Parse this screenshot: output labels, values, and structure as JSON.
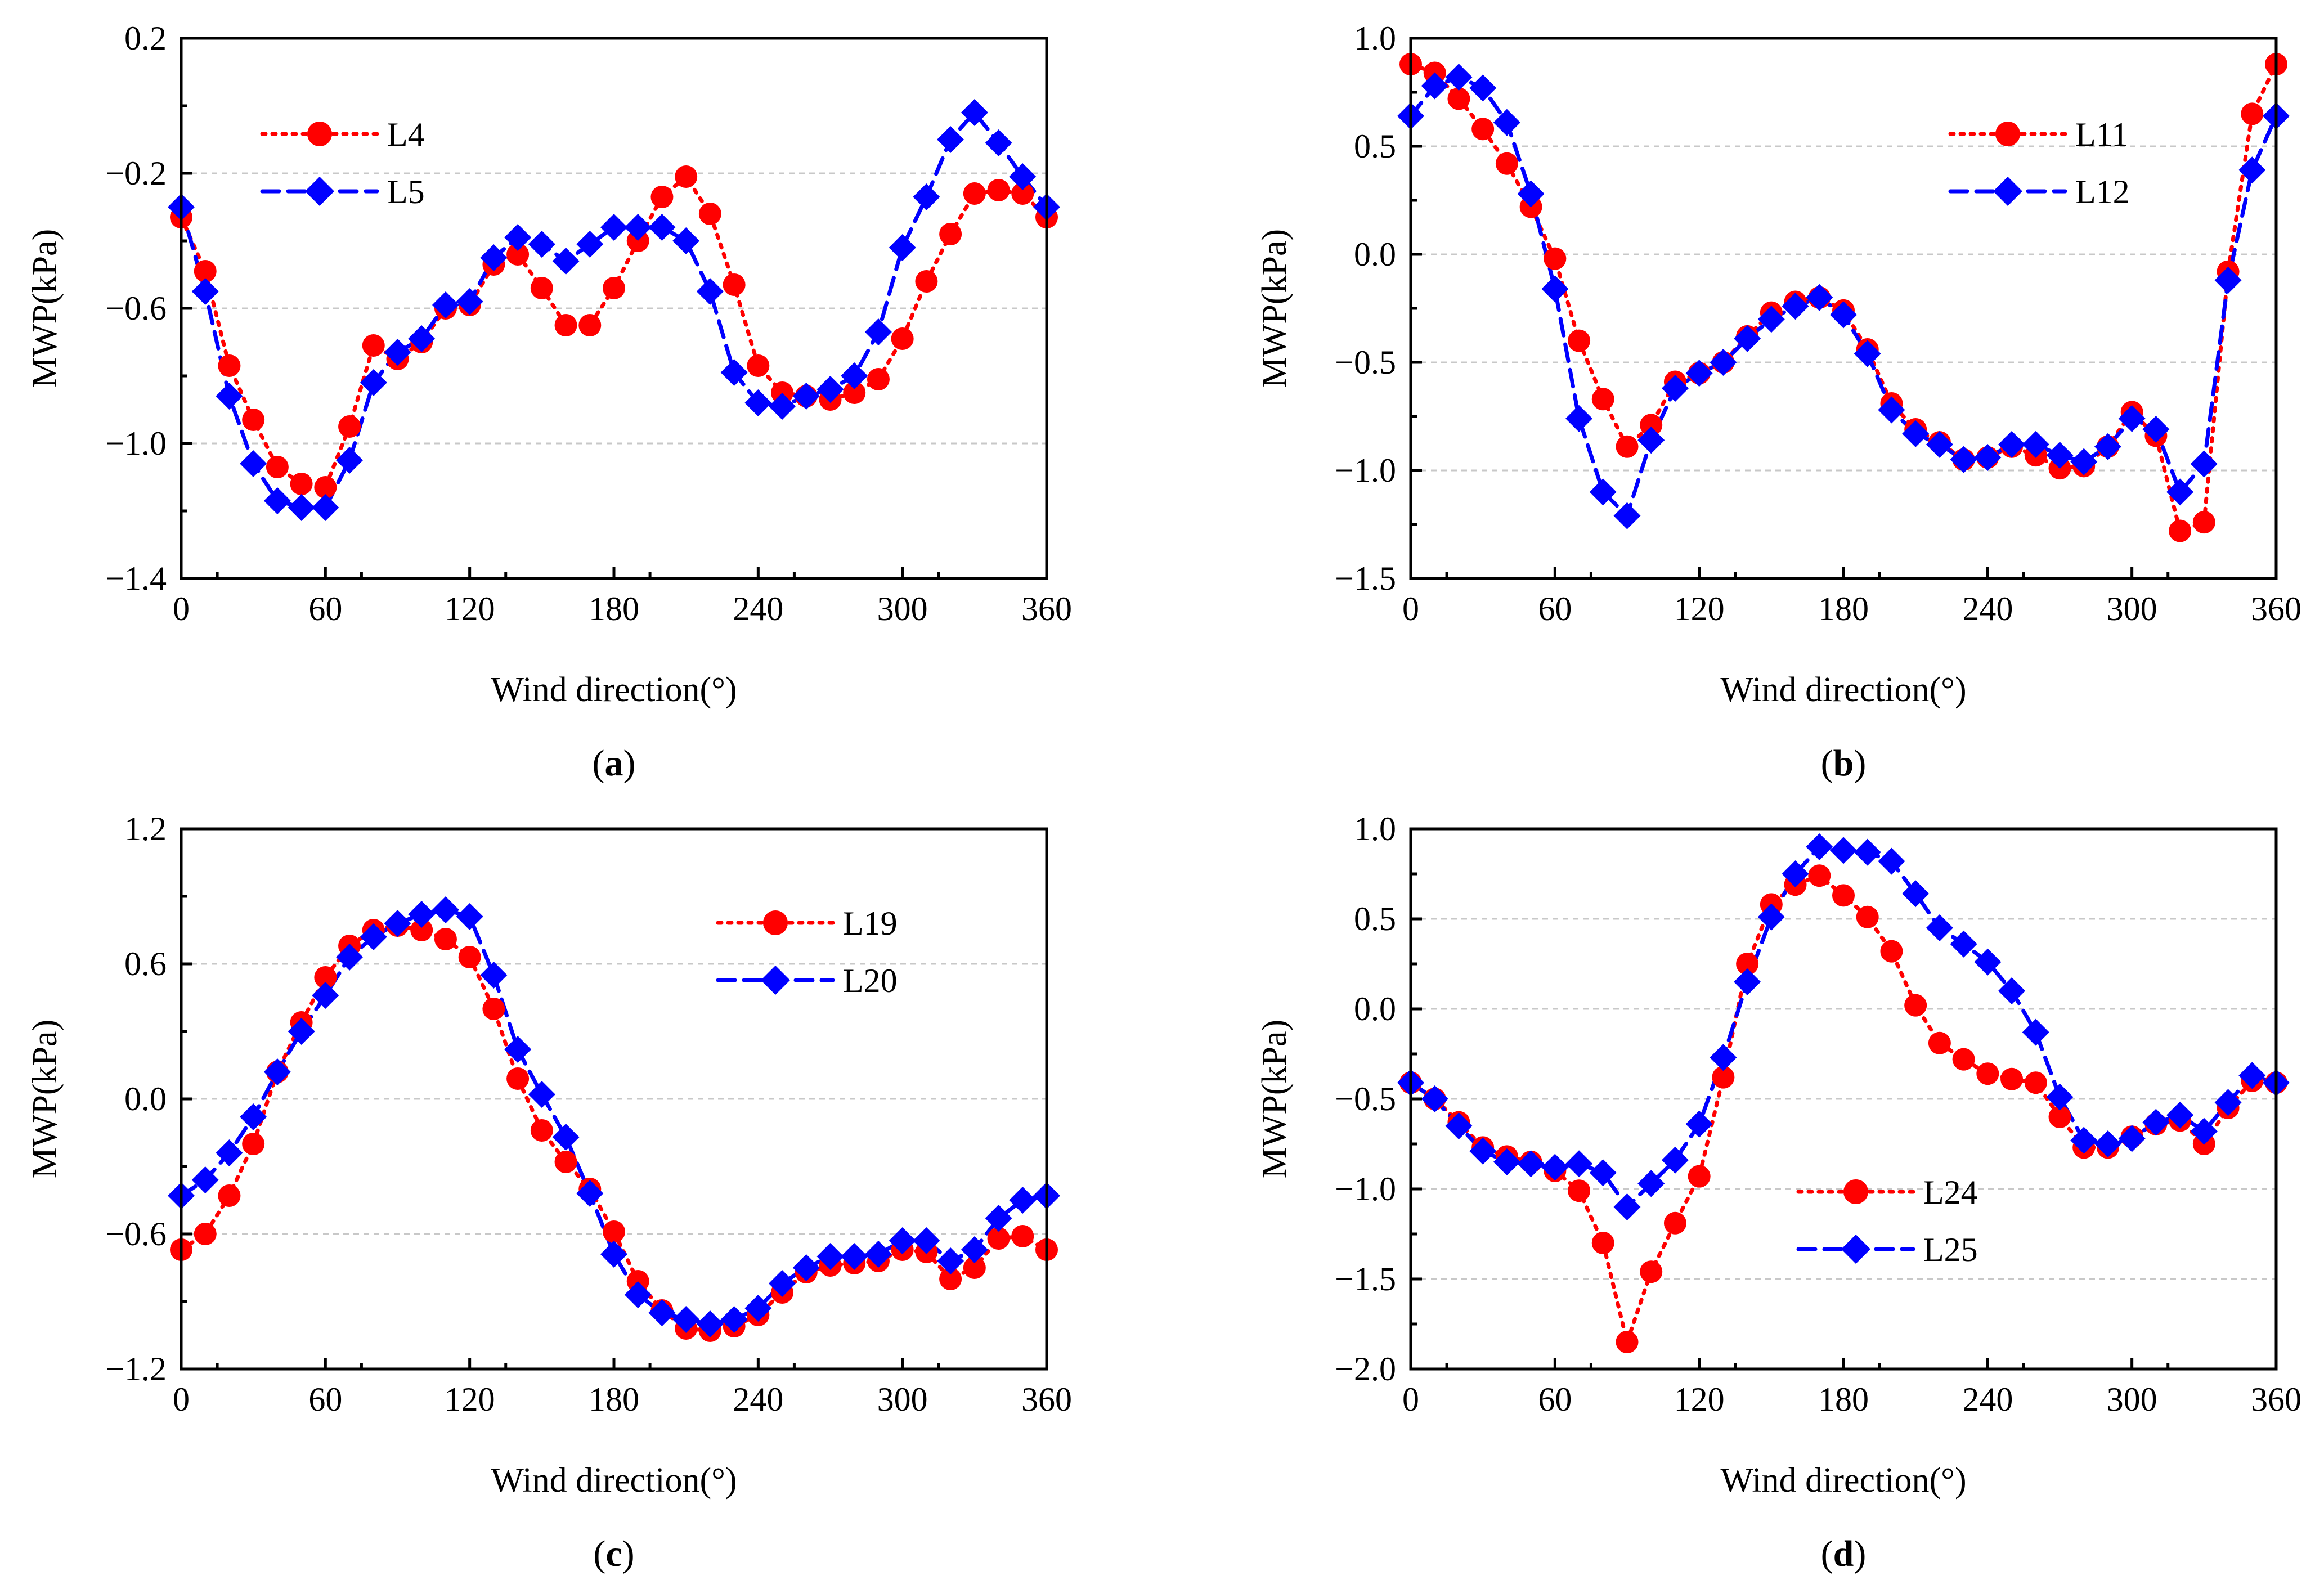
{
  "figure": {
    "x_ticks": [
      0,
      60,
      120,
      180,
      240,
      300,
      360
    ],
    "colors": {
      "series1": "#ff0000",
      "series2": "#0000ff",
      "grid": "#c8c8c8",
      "axis": "#000000"
    }
  },
  "chart_data": [
    {
      "type": "line",
      "panel_label_open": "(",
      "panel_label_letter": "a",
      "panel_label_close": ")",
      "xlabel": "Wind direction(°)",
      "ylabel": "MWP(kPa)",
      "xlim": [
        0,
        360
      ],
      "ylim": [
        -1.4,
        0.2
      ],
      "y_ticks": [
        0.2,
        -0.2,
        -0.6,
        -1.0,
        -1.4
      ],
      "y_tick_labels": [
        "0.2",
        "−0.2",
        "−0.6",
        "−1.0",
        "−1.4"
      ],
      "legend_position": "top-left",
      "x": [
        0,
        10,
        20,
        30,
        40,
        50,
        60,
        70,
        80,
        90,
        100,
        110,
        120,
        130,
        140,
        150,
        160,
        170,
        180,
        190,
        200,
        210,
        220,
        230,
        240,
        250,
        260,
        270,
        280,
        290,
        300,
        310,
        320,
        330,
        340,
        350,
        360
      ],
      "series": [
        {
          "name": "L4",
          "marker": "circle",
          "line": "dotted",
          "color": "#ff0000",
          "values": [
            -0.33,
            -0.49,
            -0.77,
            -0.93,
            -1.07,
            -1.12,
            -1.13,
            -0.95,
            -0.71,
            -0.75,
            -0.7,
            -0.6,
            -0.59,
            -0.47,
            -0.44,
            -0.54,
            -0.65,
            -0.65,
            -0.54,
            -0.4,
            -0.27,
            -0.21,
            -0.32,
            -0.53,
            -0.77,
            -0.85,
            -0.86,
            -0.87,
            -0.85,
            -0.81,
            -0.69,
            -0.52,
            -0.38,
            -0.26,
            -0.25,
            -0.26,
            -0.33
          ]
        },
        {
          "name": "L5",
          "marker": "diamond",
          "line": "dashed",
          "color": "#0000ff",
          "values": [
            -0.3,
            -0.55,
            -0.86,
            -1.06,
            -1.17,
            -1.19,
            -1.19,
            -1.05,
            -0.82,
            -0.73,
            -0.69,
            -0.59,
            -0.58,
            -0.45,
            -0.39,
            -0.41,
            -0.46,
            -0.41,
            -0.36,
            -0.36,
            -0.36,
            -0.4,
            -0.55,
            -0.79,
            -0.88,
            -0.89,
            -0.86,
            -0.84,
            -0.8,
            -0.67,
            -0.42,
            -0.27,
            -0.1,
            -0.02,
            -0.11,
            -0.21,
            -0.3
          ]
        }
      ]
    },
    {
      "type": "line",
      "panel_label_open": "(",
      "panel_label_letter": "b",
      "panel_label_close": ")",
      "xlabel": "Wind direction(°)",
      "ylabel": "MWP(kPa)",
      "xlim": [
        0,
        360
      ],
      "ylim": [
        -1.5,
        1.0
      ],
      "y_ticks": [
        1.0,
        0.5,
        0.0,
        -0.5,
        -1.0,
        -1.5
      ],
      "y_tick_labels": [
        "1.0",
        "0.5",
        "0.0",
        "−0.5",
        "−1.0",
        "−1.5"
      ],
      "legend_position": "top-right",
      "x": [
        0,
        10,
        20,
        30,
        40,
        50,
        60,
        70,
        80,
        90,
        100,
        110,
        120,
        130,
        140,
        150,
        160,
        170,
        180,
        190,
        200,
        210,
        220,
        230,
        240,
        250,
        260,
        270,
        280,
        290,
        300,
        310,
        320,
        330,
        340,
        350,
        360
      ],
      "series": [
        {
          "name": "L11",
          "marker": "circle",
          "line": "dotted",
          "color": "#ff0000",
          "values": [
            0.88,
            0.84,
            0.72,
            0.58,
            0.42,
            0.22,
            -0.02,
            -0.4,
            -0.67,
            -0.89,
            -0.79,
            -0.59,
            -0.55,
            -0.5,
            -0.38,
            -0.27,
            -0.22,
            -0.2,
            -0.26,
            -0.44,
            -0.69,
            -0.81,
            -0.87,
            -0.95,
            -0.94,
            -0.89,
            -0.93,
            -0.99,
            -0.98,
            -0.89,
            -0.73,
            -0.84,
            -1.28,
            -1.24,
            -0.08,
            0.65,
            0.88
          ]
        },
        {
          "name": "L12",
          "marker": "diamond",
          "line": "dashed",
          "color": "#0000ff",
          "values": [
            0.64,
            0.78,
            0.82,
            0.77,
            0.61,
            0.28,
            -0.16,
            -0.76,
            -1.1,
            -1.21,
            -0.86,
            -0.62,
            -0.55,
            -0.5,
            -0.39,
            -0.3,
            -0.24,
            -0.2,
            -0.28,
            -0.46,
            -0.72,
            -0.83,
            -0.88,
            -0.95,
            -0.94,
            -0.88,
            -0.88,
            -0.93,
            -0.96,
            -0.89,
            -0.76,
            -0.81,
            -1.1,
            -0.97,
            -0.12,
            0.39,
            0.64
          ]
        }
      ]
    },
    {
      "type": "line",
      "panel_label_open": "(",
      "panel_label_letter": "c",
      "panel_label_close": ")",
      "xlabel": "Wind direction(°)",
      "ylabel": "MWP(kPa)",
      "xlim": [
        0,
        360
      ],
      "ylim": [
        -1.2,
        1.2
      ],
      "y_ticks": [
        1.2,
        0.6,
        0.0,
        -0.6,
        -1.2
      ],
      "y_tick_labels": [
        "1.2",
        "0.6",
        "0.0",
        "−0.6",
        "−1.2"
      ],
      "legend_position": "top-right",
      "x": [
        0,
        10,
        20,
        30,
        40,
        50,
        60,
        70,
        80,
        90,
        100,
        110,
        120,
        130,
        140,
        150,
        160,
        170,
        180,
        190,
        200,
        210,
        220,
        230,
        240,
        250,
        260,
        270,
        280,
        290,
        300,
        310,
        320,
        330,
        340,
        350,
        360
      ],
      "series": [
        {
          "name": "L19",
          "marker": "circle",
          "line": "dotted",
          "color": "#ff0000",
          "values": [
            -0.67,
            -0.6,
            -0.43,
            -0.2,
            0.12,
            0.34,
            0.54,
            0.68,
            0.75,
            0.77,
            0.75,
            0.71,
            0.63,
            0.4,
            0.09,
            -0.14,
            -0.28,
            -0.4,
            -0.59,
            -0.81,
            -0.94,
            -1.02,
            -1.03,
            -1.01,
            -0.96,
            -0.86,
            -0.77,
            -0.74,
            -0.73,
            -0.72,
            -0.67,
            -0.68,
            -0.8,
            -0.75,
            -0.62,
            -0.61,
            -0.67
          ]
        },
        {
          "name": "L20",
          "marker": "diamond",
          "line": "dashed",
          "color": "#0000ff",
          "values": [
            -0.43,
            -0.36,
            -0.24,
            -0.08,
            0.12,
            0.3,
            0.46,
            0.63,
            0.72,
            0.78,
            0.82,
            0.84,
            0.81,
            0.55,
            0.22,
            0.02,
            -0.17,
            -0.42,
            -0.69,
            -0.87,
            -0.95,
            -0.98,
            -1.0,
            -0.98,
            -0.93,
            -0.82,
            -0.75,
            -0.7,
            -0.7,
            -0.69,
            -0.63,
            -0.63,
            -0.72,
            -0.67,
            -0.53,
            -0.45,
            -0.43
          ]
        }
      ]
    },
    {
      "type": "line",
      "panel_label_open": "(",
      "panel_label_letter": "d",
      "panel_label_close": ")",
      "xlabel": "Wind direction(°)",
      "ylabel": "MWP(kPa)",
      "xlim": [
        0,
        360
      ],
      "ylim": [
        -2.0,
        1.0
      ],
      "y_ticks": [
        1.0,
        0.5,
        0.0,
        -0.5,
        -1.0,
        -1.5,
        -2.0
      ],
      "y_tick_labels": [
        "1.0",
        "0.5",
        "0.0",
        "−0.5",
        "−1.0",
        "−1.5",
        "−2.0"
      ],
      "legend_position": "bottom-center",
      "x": [
        0,
        10,
        20,
        30,
        40,
        50,
        60,
        70,
        80,
        90,
        100,
        110,
        120,
        130,
        140,
        150,
        160,
        170,
        180,
        190,
        200,
        210,
        220,
        230,
        240,
        250,
        260,
        270,
        280,
        290,
        300,
        310,
        320,
        330,
        340,
        350,
        360
      ],
      "series": [
        {
          "name": "L24",
          "marker": "circle",
          "line": "dotted",
          "color": "#ff0000",
          "values": [
            -0.41,
            -0.5,
            -0.63,
            -0.77,
            -0.82,
            -0.85,
            -0.9,
            -1.01,
            -1.3,
            -1.85,
            -1.46,
            -1.19,
            -0.93,
            -0.38,
            0.25,
            0.58,
            0.69,
            0.74,
            0.63,
            0.51,
            0.32,
            0.02,
            -0.19,
            -0.28,
            -0.36,
            -0.39,
            -0.41,
            -0.6,
            -0.77,
            -0.77,
            -0.71,
            -0.64,
            -0.62,
            -0.75,
            -0.55,
            -0.4,
            -0.41
          ]
        },
        {
          "name": "L25",
          "marker": "diamond",
          "line": "dashed",
          "color": "#0000ff",
          "values": [
            -0.41,
            -0.5,
            -0.65,
            -0.79,
            -0.85,
            -0.86,
            -0.88,
            -0.86,
            -0.91,
            -1.1,
            -0.97,
            -0.84,
            -0.64,
            -0.27,
            0.15,
            0.51,
            0.75,
            0.9,
            0.88,
            0.87,
            0.82,
            0.64,
            0.45,
            0.36,
            0.26,
            0.1,
            -0.13,
            -0.49,
            -0.73,
            -0.75,
            -0.72,
            -0.63,
            -0.59,
            -0.68,
            -0.52,
            -0.37,
            -0.41
          ]
        }
      ]
    }
  ]
}
